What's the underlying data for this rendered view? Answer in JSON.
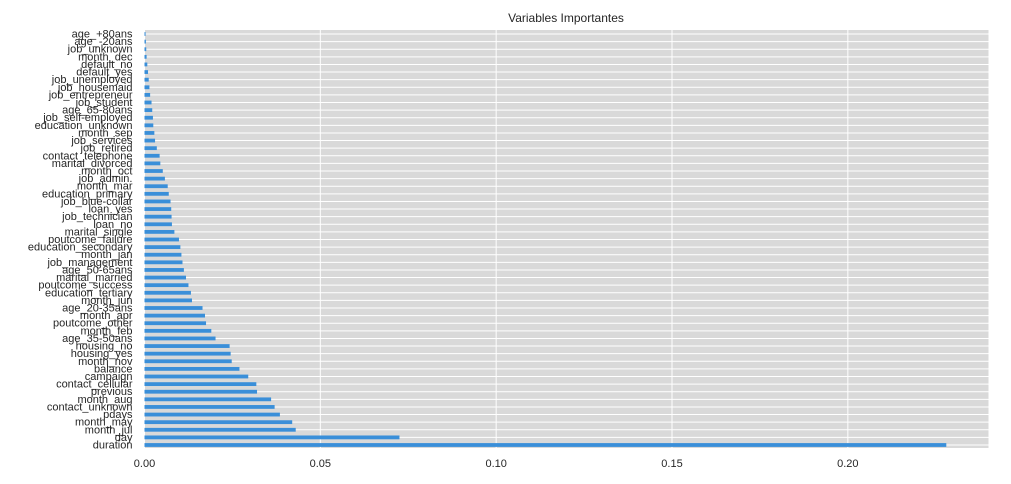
{
  "chart_data": {
    "type": "bar",
    "orientation": "horizontal",
    "title": "Variables Importantes",
    "xlabel": "",
    "ylabel": "",
    "xlim": [
      0,
      0.24
    ],
    "x_ticks": [
      "0.00",
      "0.05",
      "0.10",
      "0.15",
      "0.20"
    ],
    "grid": true,
    "bar_color": "#3a8fd9",
    "background_color": "#d9d9d9",
    "categories": [
      "duration",
      "day",
      "month_jul",
      "month_may",
      "pdays",
      "contact_unknown",
      "month_aug",
      "previous",
      "contact_cellular",
      "campaign",
      "balance",
      "month_nov",
      "housing_yes",
      "housing_no",
      "age_35-50ans",
      "month_feb",
      "poutcome_other",
      "month_apr",
      "age_20-35ans",
      "month_jun",
      "education_tertiary",
      "poutcome_success",
      "marital_married",
      "age_50-65ans",
      "job_management",
      "month_jan",
      "education_secondary",
      "poutcome_failure",
      "marital_single",
      "loan_no",
      "job_technician",
      "loan_yes",
      "job_blue-collar",
      "education_primary",
      "month_mar",
      "job_admin.",
      "month_oct",
      "marital_divorced",
      "contact_telephone",
      "job_retired",
      "job_services",
      "month_sep",
      "education_unknown",
      "job_self-employed",
      "age_65-80ans",
      "job_student",
      "job_entrepreneur",
      "job_housemaid",
      "job_unemployed",
      "default_yes",
      "default_no",
      "month_dec",
      "job_unknown",
      "age_-20ans",
      "age_+80ans"
    ],
    "values": [
      0.228,
      0.0725,
      0.043,
      0.042,
      0.0385,
      0.037,
      0.036,
      0.032,
      0.0318,
      0.0295,
      0.027,
      0.0248,
      0.0245,
      0.0242,
      0.0202,
      0.019,
      0.0175,
      0.0172,
      0.0165,
      0.0135,
      0.0132,
      0.0125,
      0.0118,
      0.0112,
      0.0108,
      0.0105,
      0.0102,
      0.0098,
      0.0085,
      0.0078,
      0.0077,
      0.0076,
      0.0074,
      0.0069,
      0.0066,
      0.0058,
      0.0052,
      0.0045,
      0.0043,
      0.0035,
      0.003,
      0.0028,
      0.0025,
      0.0024,
      0.0022,
      0.002,
      0.0016,
      0.0014,
      0.0012,
      0.001,
      0.0008,
      0.0006,
      0.0005,
      0.0004,
      0.0003
    ]
  }
}
